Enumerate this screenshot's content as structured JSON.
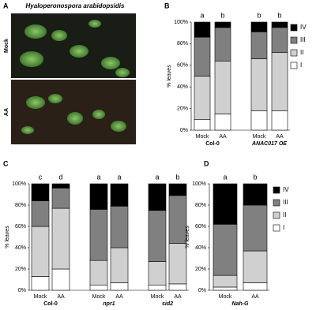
{
  "figure_a": {
    "panel": "A",
    "title": "Hyaloperonospora arabidopsidis",
    "rows": [
      "Mock",
      "AA"
    ]
  },
  "chart_data": [
    {
      "type": "stacked-bar",
      "panel": "B",
      "ylabel": "% leaves",
      "categories": [
        "Mock",
        "AA",
        "Mock",
        "AA"
      ],
      "groups": [
        "Col-0",
        "ANAC017 OE"
      ],
      "groups_italic": [
        false,
        true
      ],
      "annotations": [
        "a",
        "b",
        "b",
        "b"
      ],
      "series": [
        {
          "name": "I",
          "color": "#ffffff",
          "values": [
            10,
            15,
            18,
            18
          ]
        },
        {
          "name": "II",
          "color": "#d0d0d0",
          "values": [
            40,
            49,
            48,
            54
          ]
        },
        {
          "name": "III",
          "color": "#808080",
          "values": [
            36,
            31,
            25,
            23
          ]
        },
        {
          "name": "IV",
          "color": "#000000",
          "values": [
            14,
            5,
            9,
            5
          ]
        }
      ],
      "ylim": [
        0,
        100
      ],
      "yticks": [
        {
          "value": 0,
          "label": "0%"
        },
        {
          "value": 20,
          "label": "20%"
        },
        {
          "value": 40,
          "label": "40%"
        },
        {
          "value": 60,
          "label": "60%"
        },
        {
          "value": 80,
          "label": "80%"
        },
        {
          "value": 100,
          "label": "100%"
        }
      ],
      "legend": "right"
    },
    {
      "type": "stacked-bar",
      "panel": "C",
      "ylabel": "% leaves",
      "categories": [
        "Mock",
        "AA",
        "Mock",
        "AA",
        "Mock",
        "AA"
      ],
      "groups": [
        "Col-0",
        "npr1",
        "sid2"
      ],
      "groups_italic": [
        false,
        true,
        true
      ],
      "annotations": [
        "c",
        "d",
        "a",
        "a",
        "a",
        "b"
      ],
      "series": [
        {
          "name": "I",
          "color": "#ffffff",
          "values": [
            13,
            20,
            5,
            7,
            5,
            6
          ]
        },
        {
          "name": "II",
          "color": "#d0d0d0",
          "values": [
            47,
            57,
            23,
            33,
            22,
            38
          ]
        },
        {
          "name": "III",
          "color": "#808080",
          "values": [
            24,
            19,
            48,
            39,
            48,
            45
          ]
        },
        {
          "name": "IV",
          "color": "#000000",
          "values": [
            16,
            4,
            24,
            21,
            25,
            11
          ]
        }
      ],
      "ylim": [
        0,
        100
      ],
      "yticks": [
        {
          "value": 0,
          "label": "0%"
        },
        {
          "value": 20,
          "label": "20%"
        },
        {
          "value": 40,
          "label": "40%"
        },
        {
          "value": 60,
          "label": "60%"
        },
        {
          "value": 80,
          "label": "80%"
        },
        {
          "value": 100,
          "label": "100%"
        }
      ],
      "legend": false
    },
    {
      "type": "stacked-bar",
      "panel": "D",
      "ylabel": "% leaves",
      "categories": [
        "Mock",
        "AA"
      ],
      "groups": [
        "Nah-G"
      ],
      "groups_italic": [
        true
      ],
      "annotations": [
        "a",
        "b"
      ],
      "series": [
        {
          "name": "I",
          "color": "#ffffff",
          "values": [
            3,
            7
          ]
        },
        {
          "name": "II",
          "color": "#d0d0d0",
          "values": [
            11,
            30
          ]
        },
        {
          "name": "III",
          "color": "#808080",
          "values": [
            48,
            43
          ]
        },
        {
          "name": "IV",
          "color": "#000000",
          "values": [
            38,
            20
          ]
        }
      ],
      "ylim": [
        0,
        100
      ],
      "yticks": [
        {
          "value": 0,
          "label": "0%"
        },
        {
          "value": 20,
          "label": "20%"
        },
        {
          "value": 40,
          "label": "40%"
        },
        {
          "value": 60,
          "label": "60%"
        },
        {
          "value": 80,
          "label": "80%"
        },
        {
          "value": 100,
          "label": "100%"
        }
      ],
      "legend": "right"
    }
  ]
}
